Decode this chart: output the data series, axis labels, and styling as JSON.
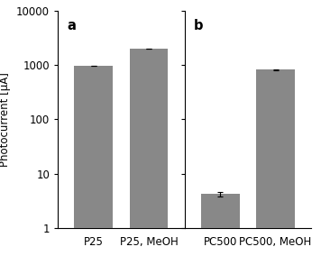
{
  "categories": [
    "P25",
    "P25, MeOH",
    "PC500",
    "PC500, MeOH"
  ],
  "values": [
    970,
    2000,
    4.2,
    820
  ],
  "errors": [
    12,
    25,
    0.4,
    15
  ],
  "bar_color": "#888888",
  "bar_width": 0.7,
  "ylabel": "Photocurrent [µA]",
  "ylim": [
    1,
    10000
  ],
  "yticks": [
    1,
    10,
    100,
    1000,
    10000
  ],
  "label_a": "a",
  "label_b": "b",
  "figsize": [
    3.56,
    2.94
  ],
  "dpi": 100,
  "background_color": "#ffffff",
  "font_size": 8.5
}
